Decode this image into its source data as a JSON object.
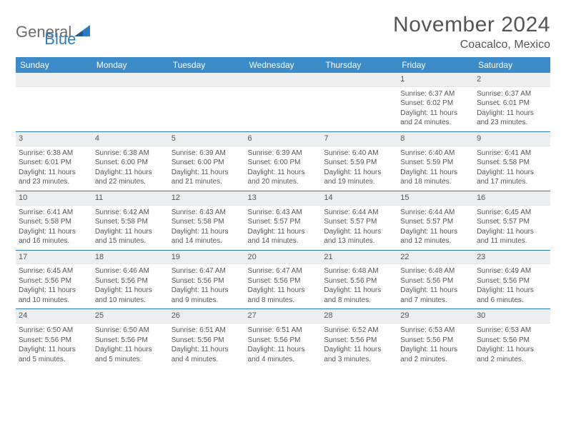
{
  "brand": {
    "general": "General",
    "blue": "Blue"
  },
  "title": "November 2024",
  "location": "Coacalco, Mexico",
  "colors": {
    "header_bg": "#3b8bc9",
    "header_text": "#ffffff",
    "daynum_bg": "#eceeef",
    "border": "#2f7bbf",
    "text": "#555555"
  },
  "day_headers": [
    "Sunday",
    "Monday",
    "Tuesday",
    "Wednesday",
    "Thursday",
    "Friday",
    "Saturday"
  ],
  "weeks": [
    [
      null,
      null,
      null,
      null,
      null,
      {
        "n": "1",
        "sunrise": "6:37 AM",
        "sunset": "6:02 PM",
        "daylight": "11 hours and 24 minutes."
      },
      {
        "n": "2",
        "sunrise": "6:37 AM",
        "sunset": "6:01 PM",
        "daylight": "11 hours and 23 minutes."
      }
    ],
    [
      {
        "n": "3",
        "sunrise": "6:38 AM",
        "sunset": "6:01 PM",
        "daylight": "11 hours and 23 minutes."
      },
      {
        "n": "4",
        "sunrise": "6:38 AM",
        "sunset": "6:00 PM",
        "daylight": "11 hours and 22 minutes."
      },
      {
        "n": "5",
        "sunrise": "6:39 AM",
        "sunset": "6:00 PM",
        "daylight": "11 hours and 21 minutes."
      },
      {
        "n": "6",
        "sunrise": "6:39 AM",
        "sunset": "6:00 PM",
        "daylight": "11 hours and 20 minutes."
      },
      {
        "n": "7",
        "sunrise": "6:40 AM",
        "sunset": "5:59 PM",
        "daylight": "11 hours and 19 minutes."
      },
      {
        "n": "8",
        "sunrise": "6:40 AM",
        "sunset": "5:59 PM",
        "daylight": "11 hours and 18 minutes."
      },
      {
        "n": "9",
        "sunrise": "6:41 AM",
        "sunset": "5:58 PM",
        "daylight": "11 hours and 17 minutes."
      }
    ],
    [
      {
        "n": "10",
        "sunrise": "6:41 AM",
        "sunset": "5:58 PM",
        "daylight": "11 hours and 16 minutes."
      },
      {
        "n": "11",
        "sunrise": "6:42 AM",
        "sunset": "5:58 PM",
        "daylight": "11 hours and 15 minutes."
      },
      {
        "n": "12",
        "sunrise": "6:43 AM",
        "sunset": "5:58 PM",
        "daylight": "11 hours and 14 minutes."
      },
      {
        "n": "13",
        "sunrise": "6:43 AM",
        "sunset": "5:57 PM",
        "daylight": "11 hours and 14 minutes."
      },
      {
        "n": "14",
        "sunrise": "6:44 AM",
        "sunset": "5:57 PM",
        "daylight": "11 hours and 13 minutes."
      },
      {
        "n": "15",
        "sunrise": "6:44 AM",
        "sunset": "5:57 PM",
        "daylight": "11 hours and 12 minutes."
      },
      {
        "n": "16",
        "sunrise": "6:45 AM",
        "sunset": "5:57 PM",
        "daylight": "11 hours and 11 minutes."
      }
    ],
    [
      {
        "n": "17",
        "sunrise": "6:45 AM",
        "sunset": "5:56 PM",
        "daylight": "11 hours and 10 minutes."
      },
      {
        "n": "18",
        "sunrise": "6:46 AM",
        "sunset": "5:56 PM",
        "daylight": "11 hours and 10 minutes."
      },
      {
        "n": "19",
        "sunrise": "6:47 AM",
        "sunset": "5:56 PM",
        "daylight": "11 hours and 9 minutes."
      },
      {
        "n": "20",
        "sunrise": "6:47 AM",
        "sunset": "5:56 PM",
        "daylight": "11 hours and 8 minutes."
      },
      {
        "n": "21",
        "sunrise": "6:48 AM",
        "sunset": "5:56 PM",
        "daylight": "11 hours and 8 minutes."
      },
      {
        "n": "22",
        "sunrise": "6:48 AM",
        "sunset": "5:56 PM",
        "daylight": "11 hours and 7 minutes."
      },
      {
        "n": "23",
        "sunrise": "6:49 AM",
        "sunset": "5:56 PM",
        "daylight": "11 hours and 6 minutes."
      }
    ],
    [
      {
        "n": "24",
        "sunrise": "6:50 AM",
        "sunset": "5:56 PM",
        "daylight": "11 hours and 5 minutes."
      },
      {
        "n": "25",
        "sunrise": "6:50 AM",
        "sunset": "5:56 PM",
        "daylight": "11 hours and 5 minutes."
      },
      {
        "n": "26",
        "sunrise": "6:51 AM",
        "sunset": "5:56 PM",
        "daylight": "11 hours and 4 minutes."
      },
      {
        "n": "27",
        "sunrise": "6:51 AM",
        "sunset": "5:56 PM",
        "daylight": "11 hours and 4 minutes."
      },
      {
        "n": "28",
        "sunrise": "6:52 AM",
        "sunset": "5:56 PM",
        "daylight": "11 hours and 3 minutes."
      },
      {
        "n": "29",
        "sunrise": "6:53 AM",
        "sunset": "5:56 PM",
        "daylight": "11 hours and 2 minutes."
      },
      {
        "n": "30",
        "sunrise": "6:53 AM",
        "sunset": "5:56 PM",
        "daylight": "11 hours and 2 minutes."
      }
    ]
  ],
  "labels": {
    "sunrise": "Sunrise: ",
    "sunset": "Sunset: ",
    "daylight": "Daylight: "
  }
}
